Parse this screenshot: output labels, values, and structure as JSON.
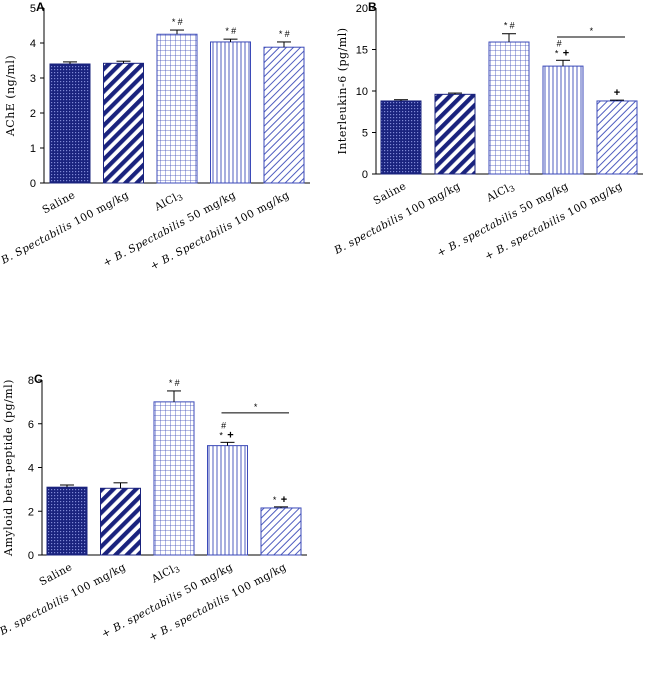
{
  "colors": {
    "navy": "#1a237e",
    "blue": "#3b4ab8",
    "grid": "#2f3fb0"
  },
  "chart_data": [
    {
      "panel": "A",
      "type": "bar",
      "ylabel": "AChE (ng/ml)",
      "ylim": [
        0,
        5
      ],
      "yticks": [
        "0",
        "1",
        "2",
        "3",
        "4",
        "5"
      ],
      "categories": [
        "Saline",
        "B. Spectabilis 100 mg/kg",
        "AlCl3",
        "+ B. Spectabilis 50 mg/kg",
        "+ B. Spectabilis 100 mg/kg"
      ],
      "values": [
        3.4,
        3.42,
        4.25,
        4.03,
        3.88
      ],
      "errors": [
        0.06,
        0.06,
        0.12,
        0.08,
        0.15
      ],
      "annotations": [
        "",
        "",
        "* #",
        "* #",
        "* #"
      ],
      "plus_marks": [
        "",
        "",
        "",
        "",
        ""
      ]
    },
    {
      "panel": "B",
      "type": "bar",
      "ylabel": "Interleukin-6 (pg/ml)",
      "ylim": [
        0,
        20
      ],
      "yticks": [
        "0",
        "5",
        "10",
        "15",
        "20"
      ],
      "categories": [
        "Saline",
        "B. spectabilis 100 mg/kg",
        "AlCl3",
        "+ B. spectabilis 50 mg/kg",
        "+ B. spectabilis 100 mg/kg"
      ],
      "values": [
        8.8,
        9.6,
        15.9,
        13.0,
        8.8
      ],
      "errors": [
        0.15,
        0.15,
        1.0,
        0.7,
        0.1
      ],
      "annotations": [
        "",
        "",
        "* #",
        "* #",
        ""
      ],
      "plus_marks": [
        "",
        "",
        "",
        "+",
        "+"
      ],
      "bracket": {
        "from": 3,
        "to": 4,
        "label": "*",
        "value": 16.5
      }
    },
    {
      "panel": "C",
      "type": "bar",
      "ylabel": "Amyloid beta-peptide (pg/ml)",
      "ylim": [
        0,
        8
      ],
      "yticks": [
        "0",
        "2",
        "4",
        "6",
        "8"
      ],
      "categories": [
        "Saline",
        "B. spectabilis 100 mg/kg",
        "AlCl3",
        "+ B. spectabilis 50 mg/kg",
        "+ B. spectabilis 100 mg/kg"
      ],
      "values": [
        3.1,
        3.05,
        7.0,
        5.0,
        2.15
      ],
      "errors": [
        0.1,
        0.25,
        0.5,
        0.15,
        0.05
      ],
      "annotations": [
        "",
        "",
        "* #",
        "* #",
        "*"
      ],
      "plus_marks": [
        "",
        "",
        "",
        "+",
        "+"
      ],
      "bracket": {
        "from": 3,
        "to": 4,
        "label": "*",
        "value": 6.5
      }
    }
  ]
}
